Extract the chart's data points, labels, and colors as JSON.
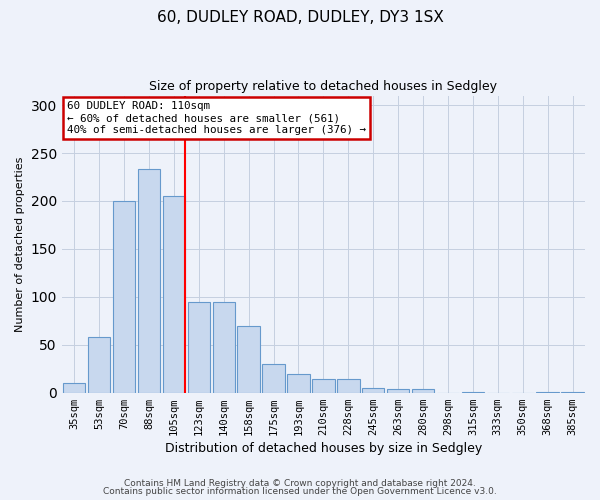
{
  "title1": "60, DUDLEY ROAD, DUDLEY, DY3 1SX",
  "title2": "Size of property relative to detached houses in Sedgley",
  "xlabel": "Distribution of detached houses by size in Sedgley",
  "ylabel": "Number of detached properties",
  "categories": [
    "35sqm",
    "53sqm",
    "70sqm",
    "88sqm",
    "105sqm",
    "123sqm",
    "140sqm",
    "158sqm",
    "175sqm",
    "193sqm",
    "210sqm",
    "228sqm",
    "245sqm",
    "263sqm",
    "280sqm",
    "298sqm",
    "315sqm",
    "333sqm",
    "350sqm",
    "368sqm",
    "385sqm"
  ],
  "values": [
    10,
    58,
    200,
    233,
    205,
    95,
    95,
    70,
    30,
    20,
    14,
    14,
    5,
    4,
    4,
    0,
    1,
    0,
    0,
    1,
    1
  ],
  "bar_color": "#c8d8ee",
  "bar_edge_color": "#6699cc",
  "red_line_x": 4.43,
  "annotation_line1": "60 DUDLEY ROAD: 110sqm",
  "annotation_line2": "← 60% of detached houses are smaller (561)",
  "annotation_line3": "40% of semi-detached houses are larger (376) →",
  "annotation_box_color": "#ffffff",
  "annotation_box_edge": "#cc0000",
  "ylim": [
    0,
    310
  ],
  "yticks": [
    0,
    50,
    100,
    150,
    200,
    250,
    300
  ],
  "footer1": "Contains HM Land Registry data © Crown copyright and database right 2024.",
  "footer2": "Contains public sector information licensed under the Open Government Licence v3.0.",
  "bg_color": "#eef2fa",
  "grid_color": "#c5cfe0",
  "title1_fontsize": 11,
  "title2_fontsize": 9,
  "ylabel_fontsize": 8,
  "xlabel_fontsize": 9,
  "tick_fontsize": 7.5,
  "footer_fontsize": 6.5
}
